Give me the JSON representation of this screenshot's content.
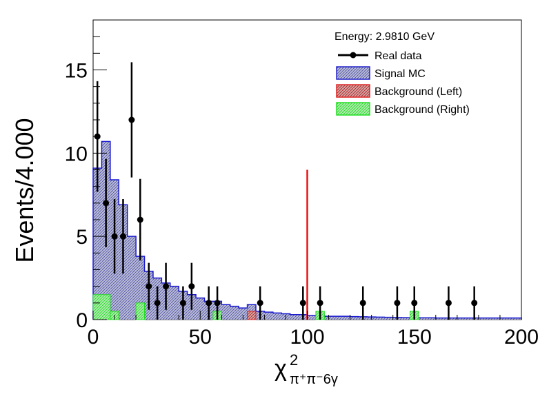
{
  "chart_data": {
    "type": "histogram",
    "x_label_symbol": "χ",
    "x_label_sup": "2",
    "x_label_sub": "π⁺π⁻6γ",
    "ylabel": "Events/4.000",
    "xlim": [
      0,
      200
    ],
    "ylim": [
      0,
      18
    ],
    "x_ticks": [
      0,
      50,
      100,
      150,
      200
    ],
    "y_ticks": [
      0,
      5,
      10,
      15
    ],
    "legend_title": "Energy: 2.9810 GeV",
    "legend_position": "top-right",
    "legend": [
      {
        "label": "Real data",
        "style": "marker"
      },
      {
        "label": "Signal MC",
        "style": "hatch",
        "color": "#2222cc",
        "fill": "#9ea0c8"
      },
      {
        "label": "Background (Left)",
        "style": "hatch",
        "color": "#dd2222",
        "fill": "#c89090"
      },
      {
        "label": "Background (Right)",
        "style": "hatch",
        "color": "#22dd22",
        "fill": "#90e890"
      }
    ],
    "signal_mc": {
      "bin_width": 2,
      "values": [
        9.1,
        9.1,
        10.7,
        10.7,
        8.4,
        8.4,
        6.9,
        6.9,
        5.0,
        5.0,
        3.8,
        3.8,
        2.9,
        2.9,
        2.5,
        2.5,
        2.2,
        2.2,
        2.0,
        2.0,
        1.7,
        1.7,
        1.5,
        1.5,
        1.3,
        1.3,
        1.1,
        1.1,
        1.0,
        1.0,
        0.9,
        0.9,
        0.8,
        0.8,
        0.7,
        0.7,
        0.6,
        0.6,
        0.5,
        0.5,
        0.45,
        0.45,
        0.4,
        0.4,
        0.35,
        0.35,
        0.3,
        0.3,
        0.3,
        0.3,
        0.25,
        0.25,
        0.25,
        0.25,
        0.2,
        0.2,
        0.2,
        0.2,
        0.2,
        0.2,
        0.18,
        0.18,
        0.17,
        0.17,
        0.16,
        0.16,
        0.15,
        0.15,
        0.14,
        0.14,
        0.13,
        0.13,
        0.12,
        0.12,
        0.12,
        0.12,
        0.11,
        0.11,
        0.11,
        0.11,
        0.1,
        0.1,
        0.1,
        0.1,
        0.1,
        0.1,
        0.1,
        0.1,
        0.1,
        0.1,
        0.1,
        0.1,
        0.1,
        0.1,
        0.1,
        0.1,
        0.1,
        0.1,
        0.1,
        0.1
      ],
      "extra_bins": [
        [
          9,
          0.3
        ],
        [
          22,
          1.0
        ],
        [
          28,
          1.2
        ],
        [
          36,
          0.9
        ],
        [
          42,
          0.9
        ],
        [
          56,
          1.1
        ],
        [
          58,
          1.1
        ],
        [
          72,
          0.9
        ],
        [
          74,
          0.9
        ]
      ]
    },
    "background_left": {
      "bins": [
        [
          8,
          12,
          0.5
        ],
        [
          72,
          76,
          0.5
        ]
      ]
    },
    "background_right": {
      "bins": [
        [
          0,
          8,
          1.5
        ],
        [
          8,
          12,
          0.5
        ],
        [
          20,
          24,
          1.0
        ],
        [
          56,
          60,
          0.5
        ],
        [
          104,
          108,
          0.5
        ],
        [
          148,
          152,
          0.5
        ]
      ]
    },
    "red_line": {
      "x": 100,
      "y": 9
    },
    "real_data": {
      "x": [
        2,
        6,
        10,
        14,
        18,
        22,
        26,
        30,
        34,
        42,
        46,
        54,
        58,
        78,
        98,
        106,
        126,
        142,
        150,
        166,
        178
      ],
      "y": [
        11,
        7,
        5,
        5,
        12,
        6,
        2,
        1,
        2,
        1,
        2,
        1,
        1,
        1,
        1,
        1,
        1,
        1,
        1,
        1,
        1
      ],
      "err": [
        3.32,
        2.65,
        2.24,
        2.24,
        3.46,
        2.45,
        1.41,
        1.0,
        1.41,
        1.0,
        1.41,
        1.0,
        1.0,
        1.0,
        1.0,
        1.0,
        1.0,
        1.0,
        1.0,
        1.0,
        1.0
      ]
    }
  }
}
